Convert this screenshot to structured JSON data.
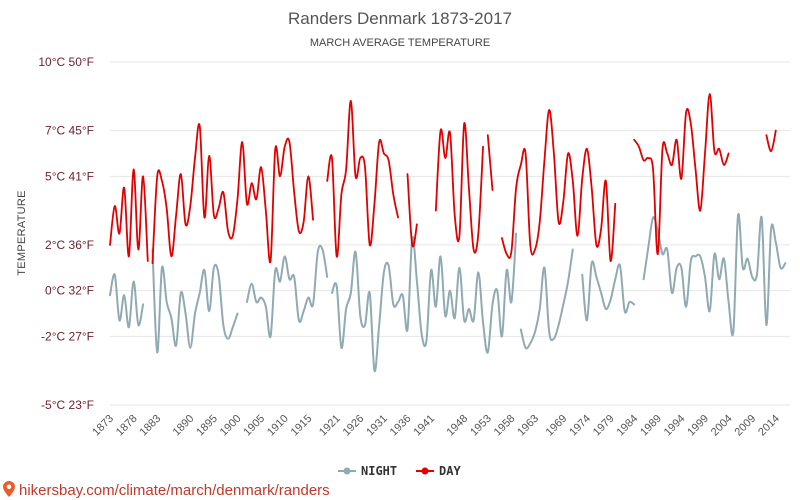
{
  "chart_data": {
    "type": "line",
    "title": "Randers Denmark 1873-2017",
    "subtitle": "MARCH AVERAGE TEMPERATURE",
    "ylabel": "TEMPERATURE",
    "ylim": [
      -5,
      10
    ],
    "xlim": [
      1873,
      2017
    ],
    "y_ticks": [
      {
        "value": 10,
        "label": "10°C 50°F"
      },
      {
        "value": 7,
        "label": "7°C 45°F"
      },
      {
        "value": 5,
        "label": "5°C 41°F"
      },
      {
        "value": 2,
        "label": "2°C 36°F"
      },
      {
        "value": 0,
        "label": "0°C 32°F"
      },
      {
        "value": -2,
        "label": "-2°C 27°F"
      },
      {
        "value": -5,
        "label": "-5°C 23°F"
      }
    ],
    "x_ticks": [
      1873,
      1878,
      1883,
      1890,
      1895,
      1900,
      1905,
      1910,
      1915,
      1921,
      1926,
      1931,
      1936,
      1941,
      1948,
      1953,
      1958,
      1963,
      1969,
      1974,
      1979,
      1984,
      1989,
      1994,
      1999,
      2004,
      2009,
      2014
    ],
    "grid": true,
    "legend_position": "bottom-center",
    "series": [
      {
        "name": "NIGHT",
        "color": "#90aab3",
        "segments": [
          [
            [
              1873,
              -0.2
            ],
            [
              1874,
              0.7
            ],
            [
              1875,
              -1.3
            ],
            [
              1876,
              -0.2
            ],
            [
              1877,
              -1.6
            ],
            [
              1878,
              0.4
            ],
            [
              1879,
              -1.5
            ],
            [
              1880,
              -0.6
            ]
          ],
          [
            [
              1882,
              1.8
            ],
            [
              1883,
              -2.7
            ],
            [
              1884,
              1.0
            ],
            [
              1885,
              -0.5
            ],
            [
              1886,
              -1.2
            ],
            [
              1887,
              -2.4
            ],
            [
              1888,
              -0.1
            ],
            [
              1889,
              -1.0
            ],
            [
              1890,
              -2.5
            ],
            [
              1891,
              -1.0
            ],
            [
              1892,
              -0.1
            ],
            [
              1893,
              0.9
            ],
            [
              1894,
              -0.9
            ],
            [
              1895,
              1.0
            ],
            [
              1896,
              0.7
            ],
            [
              1897,
              -1.5
            ],
            [
              1898,
              -2.1
            ],
            [
              1899,
              -1.6
            ],
            [
              1900,
              -1.0
            ]
          ],
          [
            [
              1902,
              -0.5
            ],
            [
              1903,
              0.3
            ],
            [
              1904,
              -0.5
            ],
            [
              1905,
              -0.3
            ],
            [
              1906,
              -0.7
            ],
            [
              1907,
              -2.0
            ],
            [
              1908,
              0.9
            ],
            [
              1909,
              0.4
            ],
            [
              1910,
              1.5
            ],
            [
              1911,
              0.5
            ],
            [
              1912,
              0.6
            ],
            [
              1913,
              -1.3
            ],
            [
              1914,
              -0.9
            ],
            [
              1915,
              -0.3
            ],
            [
              1916,
              -0.6
            ],
            [
              1917,
              1.7
            ],
            [
              1918,
              1.8
            ],
            [
              1919,
              0.6
            ]
          ],
          [
            [
              1920,
              -0.1
            ],
            [
              1921,
              0.2
            ],
            [
              1922,
              -2.5
            ],
            [
              1923,
              -0.8
            ],
            [
              1924,
              -0.1
            ],
            [
              1925,
              1.7
            ],
            [
              1926,
              -1.1
            ],
            [
              1927,
              -1.5
            ],
            [
              1928,
              -0.1
            ],
            [
              1929,
              -3.5
            ],
            [
              1930,
              -1.5
            ],
            [
              1931,
              0.8
            ],
            [
              1932,
              1.1
            ],
            [
              1933,
              -0.6
            ],
            [
              1934,
              -0.5
            ],
            [
              1935,
              -0.2
            ],
            [
              1936,
              -1.7
            ],
            [
              1937,
              2.3
            ],
            [
              1938,
              0.4
            ],
            [
              1939,
              -1.9
            ],
            [
              1940,
              -2.2
            ],
            [
              1941,
              0.9
            ],
            [
              1942,
              -0.7
            ],
            [
              1943,
              1.5
            ],
            [
              1944,
              -1.1
            ],
            [
              1945,
              0.0
            ],
            [
              1946,
              -1.2
            ],
            [
              1947,
              1.0
            ],
            [
              1948,
              -1.3
            ],
            [
              1949,
              -0.8
            ],
            [
              1950,
              -1.3
            ],
            [
              1951,
              0.8
            ],
            [
              1952,
              -1.4
            ],
            [
              1953,
              -2.7
            ],
            [
              1954,
              -0.6
            ],
            [
              1955,
              0.0
            ],
            [
              1956,
              -2.0
            ],
            [
              1957,
              0.9
            ],
            [
              1958,
              -0.5
            ],
            [
              1959,
              2.5
            ]
          ],
          [
            [
              1960,
              -1.7
            ],
            [
              1961,
              -2.5
            ],
            [
              1962,
              -2.3
            ],
            [
              1963,
              -1.8
            ],
            [
              1964,
              -0.8
            ],
            [
              1965,
              1.0
            ],
            [
              1966,
              -1.8
            ],
            [
              1967,
              -2.1
            ],
            [
              1968,
              -1.5
            ],
            [
              1969,
              -0.6
            ],
            [
              1970,
              0.4
            ],
            [
              1971,
              1.8
            ]
          ],
          [
            [
              1973,
              0.7
            ],
            [
              1974,
              -1.3
            ],
            [
              1975,
              1.2
            ],
            [
              1976,
              0.6
            ],
            [
              1977,
              -0.1
            ],
            [
              1978,
              -0.8
            ],
            [
              1979,
              -0.4
            ],
            [
              1980,
              0.5
            ],
            [
              1981,
              1.1
            ],
            [
              1982,
              -0.9
            ],
            [
              1983,
              -0.5
            ],
            [
              1984,
              -0.6
            ]
          ],
          [
            [
              1986,
              0.5
            ],
            [
              1987,
              1.9
            ],
            [
              1988,
              3.2
            ],
            [
              1989,
              2.6
            ],
            [
              1990,
              1.6
            ],
            [
              1991,
              1.8
            ],
            [
              1992,
              -0.1
            ],
            [
              1993,
              1.0
            ],
            [
              1994,
              1.0
            ],
            [
              1995,
              -0.7
            ],
            [
              1996,
              1.3
            ],
            [
              1997,
              1.5
            ],
            [
              1998,
              1.5
            ],
            [
              1999,
              0.6
            ],
            [
              2000,
              -0.9
            ],
            [
              2001,
              1.6
            ],
            [
              2002,
              0.5
            ],
            [
              2003,
              1.4
            ],
            [
              2004,
              -0.5
            ],
            [
              2005,
              -1.8
            ],
            [
              2006,
              3.3
            ],
            [
              2007,
              1.0
            ],
            [
              2008,
              1.4
            ],
            [
              2009,
              0.6
            ],
            [
              2010,
              0.7
            ],
            [
              2011,
              3.2
            ],
            [
              2012,
              -1.5
            ],
            [
              2013,
              2.7
            ],
            [
              2014,
              2.1
            ],
            [
              2015,
              1.0
            ],
            [
              2016,
              1.2
            ]
          ]
        ]
      },
      {
        "name": "DAY",
        "color": "#e00000",
        "segments": [
          [
            [
              1873,
              2.0
            ],
            [
              1874,
              3.7
            ],
            [
              1875,
              2.5
            ],
            [
              1876,
              4.5
            ],
            [
              1877,
              1.5
            ],
            [
              1878,
              5.3
            ],
            [
              1879,
              1.8
            ],
            [
              1880,
              5.0
            ],
            [
              1881,
              1.3
            ]
          ],
          [
            [
              1882,
              1.2
            ],
            [
              1883,
              5.0
            ],
            [
              1884,
              4.8
            ],
            [
              1885,
              3.6
            ],
            [
              1886,
              1.5
            ],
            [
              1887,
              3.3
            ],
            [
              1888,
              5.1
            ],
            [
              1889,
              2.9
            ],
            [
              1890,
              3.7
            ],
            [
              1891,
              5.8
            ],
            [
              1892,
              7.2
            ],
            [
              1893,
              3.2
            ],
            [
              1894,
              5.9
            ],
            [
              1895,
              3.3
            ],
            [
              1896,
              3.6
            ],
            [
              1897,
              4.3
            ],
            [
              1898,
              2.6
            ],
            [
              1899,
              2.4
            ],
            [
              1900,
              4.0
            ],
            [
              1901,
              6.5
            ],
            [
              1902,
              3.8
            ],
            [
              1903,
              4.7
            ],
            [
              1904,
              4.0
            ],
            [
              1905,
              5.4
            ],
            [
              1906,
              3.5
            ],
            [
              1907,
              1.3
            ],
            [
              1908,
              6.2
            ],
            [
              1909,
              5.0
            ],
            [
              1910,
              6.3
            ],
            [
              1911,
              6.5
            ],
            [
              1912,
              4.3
            ],
            [
              1913,
              2.6
            ],
            [
              1914,
              3.0
            ],
            [
              1915,
              5.0
            ],
            [
              1916,
              3.1
            ]
          ],
          [
            [
              1919,
              4.8
            ],
            [
              1920,
              5.8
            ],
            [
              1921,
              1.5
            ],
            [
              1922,
              4.2
            ],
            [
              1923,
              5.3
            ],
            [
              1924,
              8.3
            ],
            [
              1925,
              5.0
            ],
            [
              1926,
              5.8
            ],
            [
              1927,
              5.4
            ],
            [
              1928,
              2.0
            ],
            [
              1929,
              3.8
            ],
            [
              1930,
              6.5
            ],
            [
              1931,
              6.0
            ],
            [
              1932,
              5.7
            ],
            [
              1933,
              4.2
            ],
            [
              1934,
              3.2
            ]
          ],
          [
            [
              1936,
              5.1
            ],
            [
              1937,
              2.0
            ],
            [
              1938,
              2.9
            ]
          ],
          [
            [
              1942,
              3.5
            ],
            [
              1943,
              7.0
            ],
            [
              1944,
              5.8
            ],
            [
              1945,
              6.9
            ],
            [
              1946,
              3.3
            ],
            [
              1947,
              2.4
            ],
            [
              1948,
              7.3
            ],
            [
              1949,
              4.5
            ],
            [
              1950,
              1.8
            ],
            [
              1951,
              2.5
            ],
            [
              1952,
              6.3
            ]
          ],
          [
            [
              1953,
              6.8
            ],
            [
              1954,
              4.4
            ]
          ],
          [
            [
              1956,
              2.3
            ],
            [
              1957,
              1.6
            ],
            [
              1958,
              1.7
            ],
            [
              1959,
              4.5
            ],
            [
              1960,
              5.5
            ],
            [
              1961,
              6.0
            ],
            [
              1962,
              2.0
            ],
            [
              1963,
              1.8
            ],
            [
              1964,
              3.0
            ],
            [
              1965,
              5.7
            ],
            [
              1966,
              7.9
            ],
            [
              1967,
              6.0
            ],
            [
              1968,
              3.0
            ],
            [
              1969,
              3.9
            ],
            [
              1970,
              6.0
            ],
            [
              1971,
              4.8
            ],
            [
              1972,
              2.4
            ],
            [
              1973,
              4.9
            ],
            [
              1974,
              6.2
            ],
            [
              1975,
              4.5
            ],
            [
              1976,
              2.0
            ],
            [
              1977,
              2.7
            ],
            [
              1978,
              4.8
            ],
            [
              1979,
              1.3
            ],
            [
              1980,
              3.8
            ]
          ],
          [
            [
              1984,
              6.6
            ],
            [
              1985,
              6.3
            ],
            [
              1986,
              5.7
            ],
            [
              1987,
              5.8
            ],
            [
              1988,
              5.3
            ],
            [
              1989,
              1.6
            ],
            [
              1990,
              6.2
            ],
            [
              1991,
              6.0
            ],
            [
              1992,
              5.5
            ],
            [
              1993,
              6.6
            ],
            [
              1994,
              4.9
            ],
            [
              1995,
              7.8
            ],
            [
              1996,
              7.3
            ],
            [
              1997,
              5.3
            ],
            [
              1998,
              3.5
            ],
            [
              1999,
              6.0
            ],
            [
              2000,
              8.6
            ],
            [
              2001,
              6.1
            ],
            [
              2002,
              6.2
            ],
            [
              2003,
              5.5
            ],
            [
              2004,
              6.0
            ]
          ],
          [
            [
              2012,
              6.8
            ],
            [
              2013,
              6.1
            ],
            [
              2014,
              7.0
            ]
          ]
        ]
      }
    ]
  },
  "legend": {
    "items": [
      {
        "label": "NIGHT",
        "color": "#90aab3"
      },
      {
        "label": "DAY",
        "color": "#e00000"
      }
    ]
  },
  "watermark": {
    "text": "hikersbay.com/climate/march/denmark/randers",
    "icon": "map-pin-icon"
  }
}
